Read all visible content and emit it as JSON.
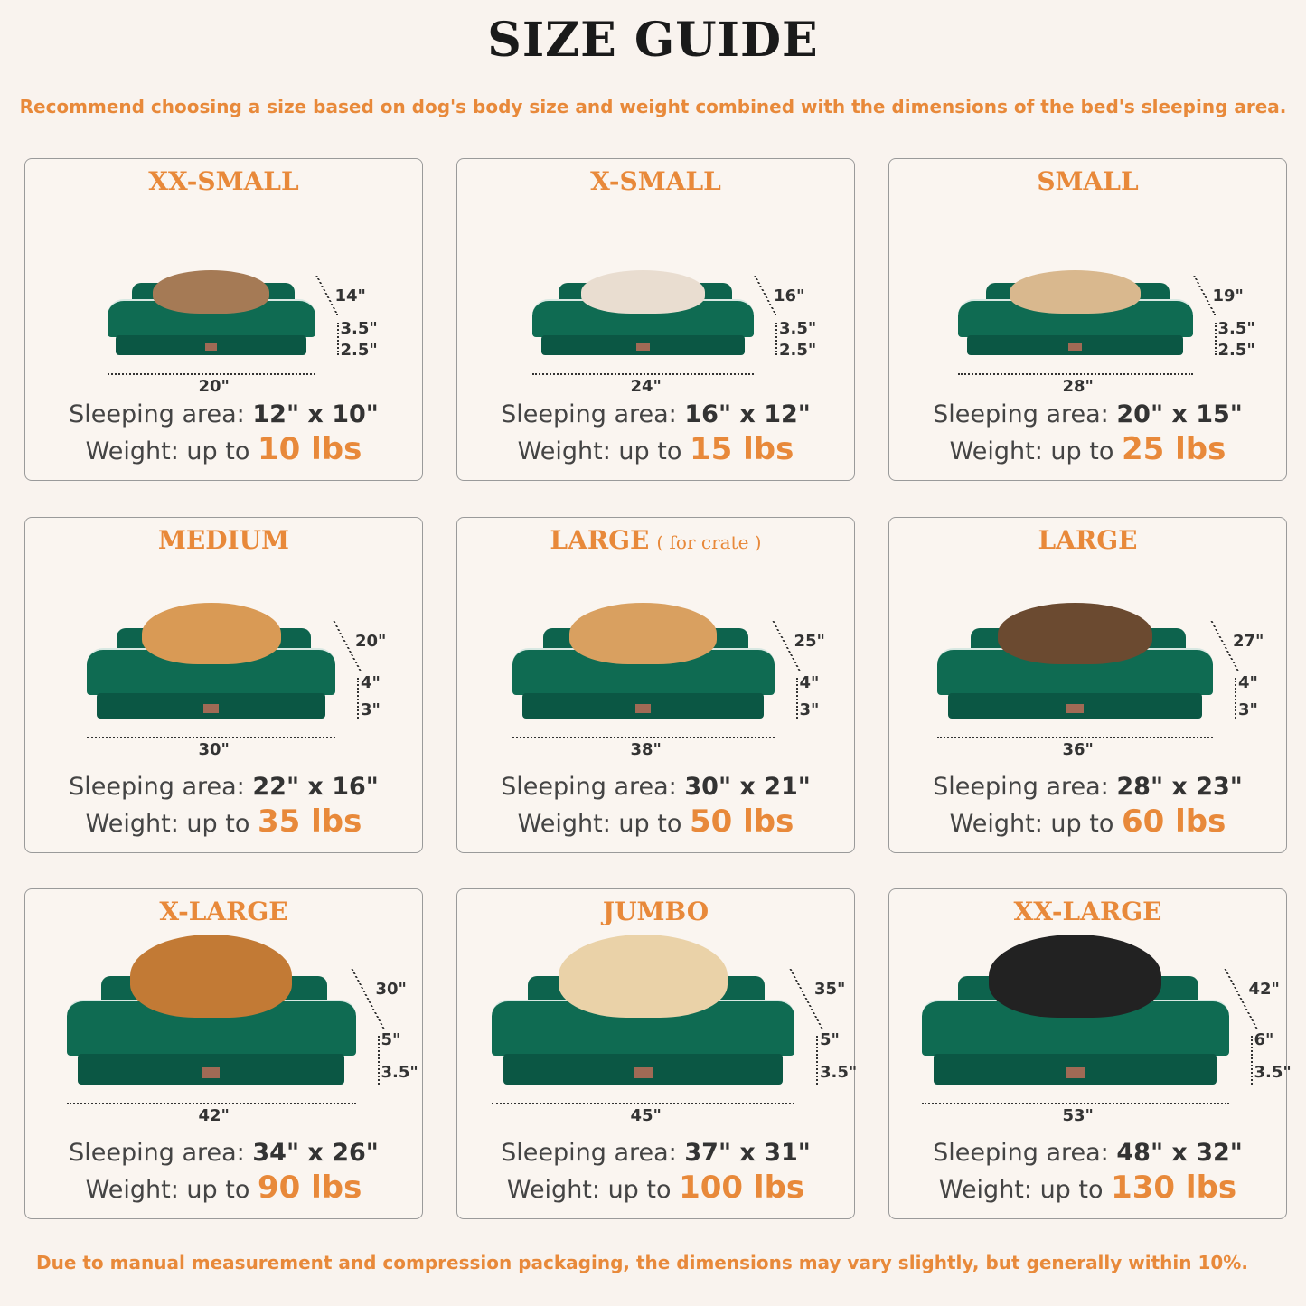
{
  "title": "SIZE GUIDE",
  "subtitle": "Recommend choosing a size based on dog's body size and weight combined with the dimensions of the bed's sleeping area.",
  "footer": "Due to manual measurement and compression packaging, the dimensions may vary slightly, but generally within 10%.",
  "colors": {
    "accent": "#e8893a",
    "bed": "#0d634d",
    "background": "#f9f3ee"
  },
  "labels": {
    "sleeping_area": "Sleeping area:",
    "weight": "Weight: up to"
  },
  "sizes": [
    {
      "name": "XX-SMALL",
      "note": "",
      "depth": "14\"",
      "bolster": "3.5\"",
      "base": "2.5\"",
      "width": "20\"",
      "sleeping_area": "12\" x 10\"",
      "weight": "10 lbs",
      "pet": "cat",
      "pet_color": "#a57a55"
    },
    {
      "name": "X-SMALL",
      "note": "",
      "depth": "16\"",
      "bolster": "3.5\"",
      "base": "2.5\"",
      "width": "24\"",
      "sleeping_area": "16\" x 12\"",
      "weight": "15 lbs",
      "pet": "small white dog",
      "pet_color": "#e9ddd0"
    },
    {
      "name": "SMALL",
      "note": "",
      "depth": "19\"",
      "bolster": "3.5\"",
      "base": "2.5\"",
      "width": "28\"",
      "sleeping_area": "20\" x 15\"",
      "weight": "25 lbs",
      "pet": "french bulldog",
      "pet_color": "#d9b88e"
    },
    {
      "name": "MEDIUM",
      "note": "",
      "depth": "20\"",
      "bolster": "4\"",
      "base": "3\"",
      "width": "30\"",
      "sleeping_area": "22\" x 16\"",
      "weight": "35 lbs",
      "pet": "corgi",
      "pet_color": "#d99a55"
    },
    {
      "name": "LARGE",
      "note": "( for crate )",
      "depth": "25\"",
      "bolster": "4\"",
      "base": "3\"",
      "width": "38\"",
      "sleeping_area": "30\" x 21\"",
      "weight": "50 lbs",
      "pet": "shiba inu",
      "pet_color": "#d9a060"
    },
    {
      "name": "LARGE",
      "note": "",
      "depth": "27\"",
      "bolster": "4\"",
      "base": "3\"",
      "width": "36\"",
      "sleeping_area": "28\" x 23\"",
      "weight": "60 lbs",
      "pet": "border collie",
      "pet_color": "#6b4a30"
    },
    {
      "name": "X-LARGE",
      "note": "",
      "depth": "30\"",
      "bolster": "5\"",
      "base": "3.5\"",
      "width": "42\"",
      "sleeping_area": "34\" x 26\"",
      "weight": "90 lbs",
      "pet": "golden retriever",
      "pet_color": "#c27a35"
    },
    {
      "name": "JUMBO",
      "note": "",
      "depth": "35\"",
      "bolster": "5\"",
      "base": "3.5\"",
      "width": "45\"",
      "sleeping_area": "37\" x 31\"",
      "weight": "100 lbs",
      "pet": "labrador",
      "pet_color": "#ead2a8"
    },
    {
      "name": "XX-LARGE",
      "note": "",
      "depth": "42\"",
      "bolster": "6\"",
      "base": "3.5\"",
      "width": "53\"",
      "sleeping_area": "48\" x 32\"",
      "weight": "130 lbs",
      "pet": "rottweiler",
      "pet_color": "#222222"
    }
  ]
}
